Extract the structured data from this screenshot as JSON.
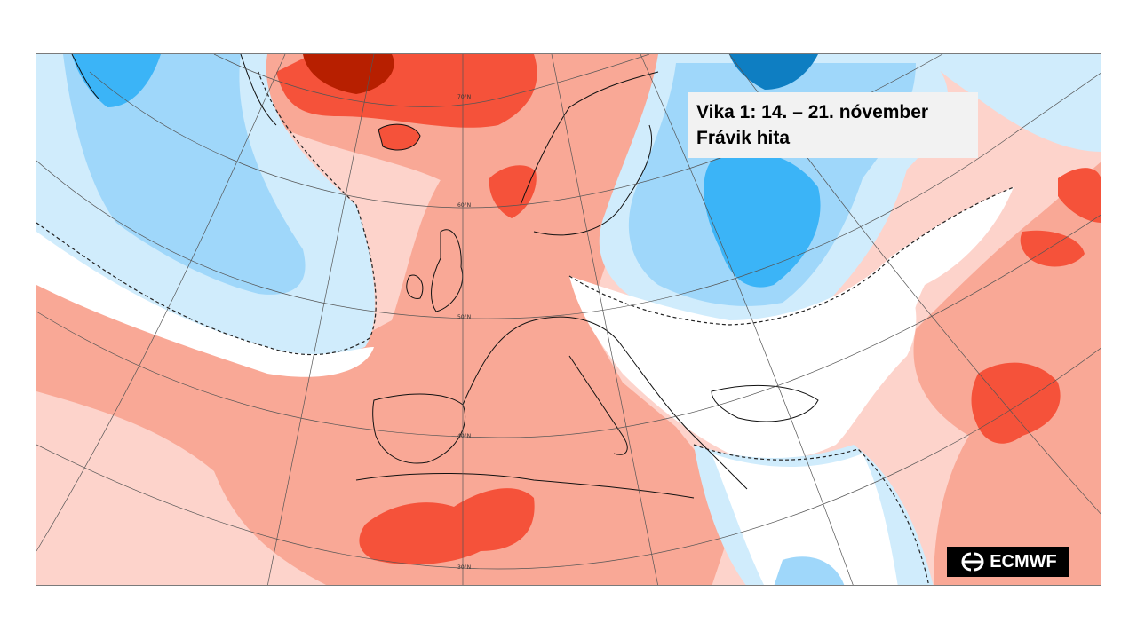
{
  "title_line1": "Vika 1: 14. – 21. nóvember",
  "title_line2": "Frávik hita",
  "logo": {
    "text": "ECMWF",
    "icon": "ecmwf-logo-icon"
  },
  "latitude_labels": [
    "70°N",
    "60°N",
    "50°N",
    "40°N",
    "30°N"
  ],
  "colors": {
    "warm_light": "#fdd3cb",
    "warm_medium": "#f9a896",
    "warm_strong": "#f5523a",
    "warm_extreme": "#b71f00",
    "cool_light": "#d0ecfc",
    "cool_medium": "#9fd7fa",
    "cool_strong": "#3bb4f7",
    "cool_extreme": "#0e7ec2",
    "neutral": "#ffffff"
  }
}
